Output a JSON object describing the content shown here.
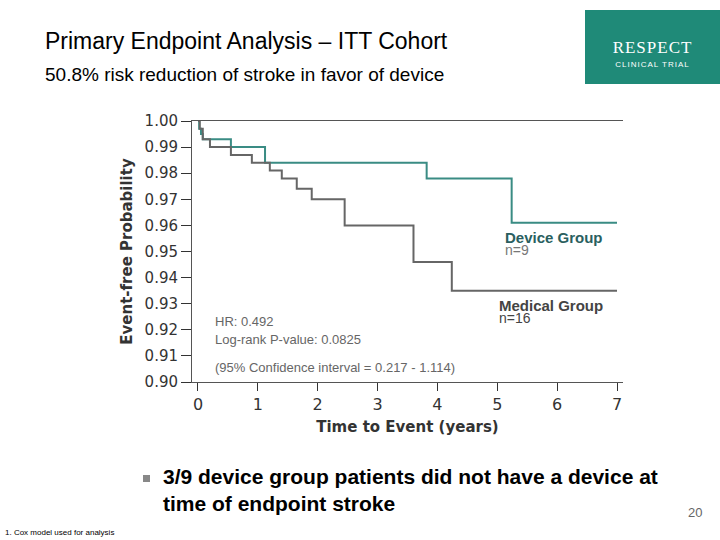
{
  "slide": {
    "title": "Primary Endpoint Analysis – ITT Cohort",
    "subtitle": "50.8% risk reduction of stroke in favor of device",
    "logo": [
      "RESPECT",
      "CLINICAL TRIAL"
    ],
    "bullet": "3/9 device group patients did not have a device at time of endpoint stroke",
    "footnote": "1. Cox model used for analysis",
    "page_number": "20"
  },
  "chart_data": {
    "type": "line",
    "line_style": "step",
    "x_label": "Time to Event (years)",
    "y_label": "Event-free Probability",
    "xlim": [
      -0.1,
      7.1
    ],
    "xticks": [
      0,
      1,
      2,
      3,
      4,
      5,
      6,
      7
    ],
    "ylim": [
      0.9,
      1.0
    ],
    "yticks": [
      {
        "value": 0.9,
        "label": "0.90"
      },
      0.91,
      0.92,
      0.93,
      0.94,
      0.95,
      0.96,
      0.97,
      0.98,
      0.99,
      {
        "value": 1.0,
        "label": "1.00"
      }
    ],
    "grid": false,
    "series": [
      {
        "name": "Device Group",
        "n": "n=9",
        "color": "#3a8c84",
        "x": [
          0,
          0.02,
          0.05,
          0.08,
          0.55,
          1.12,
          3.82,
          5.24,
          7
        ],
        "values": [
          1.0,
          0.997,
          0.995,
          0.993,
          0.99,
          0.984,
          0.978,
          0.961,
          0.961
        ]
      },
      {
        "name": "Medical Group",
        "n": "n=16",
        "color": "#666666",
        "x": [
          0,
          0.03,
          0.08,
          0.2,
          0.55,
          0.9,
          1.2,
          1.4,
          1.65,
          1.9,
          2.45,
          3.6,
          4.24,
          7
        ],
        "values": [
          1.0,
          0.997,
          0.993,
          0.99,
          0.987,
          0.984,
          0.981,
          0.978,
          0.974,
          0.97,
          0.96,
          0.946,
          0.935,
          0.935
        ]
      }
    ],
    "annotations": [
      "HR: 0.492",
      "Log-rank P-value: 0.0825",
      "(95% Confidence interval = 0.217 - 1.114)"
    ]
  }
}
